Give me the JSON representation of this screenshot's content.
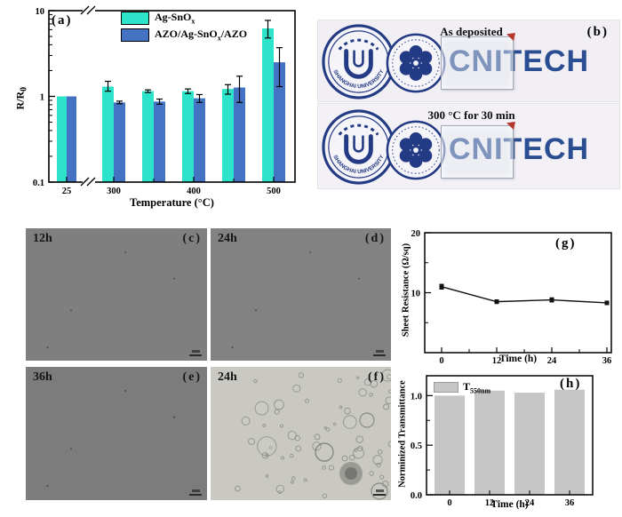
{
  "chart_data": [
    {
      "id": "a",
      "type": "bar",
      "panel_label": "(a)",
      "xlabel": "Temperature (°C)",
      "ylabel": "R/R0",
      "ylabel_main": "R/R",
      "ylabel_sub": "0",
      "yscale": "log",
      "ylim": [
        0.1,
        10
      ],
      "yticks": [
        "0.1",
        "1",
        "10"
      ],
      "ytick_values": [
        0.1,
        1,
        10
      ],
      "categories": [
        25,
        300,
        350,
        400,
        450,
        500
      ],
      "xticks": [
        {
          "value": 25,
          "label": "25"
        },
        {
          "value": 300,
          "label": "300"
        },
        {
          "value": 400,
          "label": "400"
        },
        {
          "value": 500,
          "label": "500"
        }
      ],
      "axis_break": "between 25 and 300",
      "series": [
        {
          "name": "Ag-SnOx",
          "name_main": "Ag-SnO",
          "name_sub": "x",
          "name_tail": "",
          "color": "#2de3c9",
          "values": [
            1.0,
            1.3,
            1.15,
            1.15,
            1.22,
            6.2
          ],
          "err_plus": [
            0,
            0.2,
            0.04,
            0.07,
            0.15,
            1.5
          ],
          "err_minus": [
            0,
            0.15,
            0.04,
            0.07,
            0.16,
            1.4
          ]
        },
        {
          "name": "AZO/Ag-SnOx/AZO",
          "name_main": "AZO/Ag-SnO",
          "name_sub": "x",
          "name_tail": "/AZO",
          "color": "#4573c4",
          "values": [
            1.0,
            0.85,
            0.87,
            0.95,
            1.27,
            2.5
          ],
          "err_plus": [
            0,
            0.03,
            0.06,
            0.1,
            0.45,
            1.2
          ],
          "err_minus": [
            0,
            0.03,
            0.06,
            0.1,
            0.42,
            1.2
          ]
        }
      ],
      "legend_position": "top-center"
    },
    {
      "id": "g",
      "type": "line",
      "panel_label": "(g)",
      "xlabel": "Time (h)",
      "ylabel": "Sheet Resistance (Ω/sq)",
      "x": [
        0,
        12,
        24,
        36
      ],
      "y": [
        11,
        8.5,
        8.8,
        8.3
      ],
      "y_err": [
        0.4,
        0.3,
        0.35,
        0.3
      ],
      "ylim": [
        0,
        20
      ],
      "yticks": [
        "10",
        "20"
      ],
      "ytick_values": [
        10,
        20
      ],
      "minor_yticks": [
        5,
        15
      ],
      "marker": "square",
      "line_color": "#111111",
      "grid": false
    },
    {
      "id": "h",
      "type": "bar",
      "panel_label": "(h)",
      "xlabel": "Time (h)",
      "ylabel": "Norminized Transmittance",
      "categories": [
        "0",
        "12",
        "24",
        "36"
      ],
      "values": [
        1.0,
        1.05,
        1.03,
        1.06
      ],
      "ylim": [
        0,
        1.2
      ],
      "yticks": [
        "0.0",
        "0.5",
        "1.0"
      ],
      "ytick_values": [
        0,
        0.5,
        1.0
      ],
      "minor_yticks": [
        0.25,
        0.75
      ],
      "bar_color": "#c6c6c6",
      "legend": {
        "label": "T550nm",
        "label_main": "T",
        "label_sub": "550nm",
        "swatch_color": "#c6c6c6"
      },
      "grid": false
    }
  ],
  "panel_b": {
    "label": "(b)",
    "captions": [
      "As deposited",
      "300 °C for 30 min"
    ],
    "university_ring_text": "SHANGHAI UNIVERSITY",
    "cnitech_text": "CNITECH",
    "colors": {
      "logo_navy": "#233a84",
      "cnitech_blue": "#2b4d92",
      "photo_bg": "#f1eff4",
      "marker_red": "#b5372e"
    }
  },
  "micrographs": [
    {
      "id": "c",
      "time_label": "12h",
      "panel_label": "(c)",
      "style": "plain"
    },
    {
      "id": "d",
      "time_label": "24h",
      "panel_label": "(d)",
      "style": "plain"
    },
    {
      "id": "e",
      "time_label": "36h",
      "panel_label": "(e)",
      "style": "plain"
    },
    {
      "id": "f",
      "time_label": "24h",
      "panel_label": "(f)",
      "style": "bubbles"
    }
  ]
}
